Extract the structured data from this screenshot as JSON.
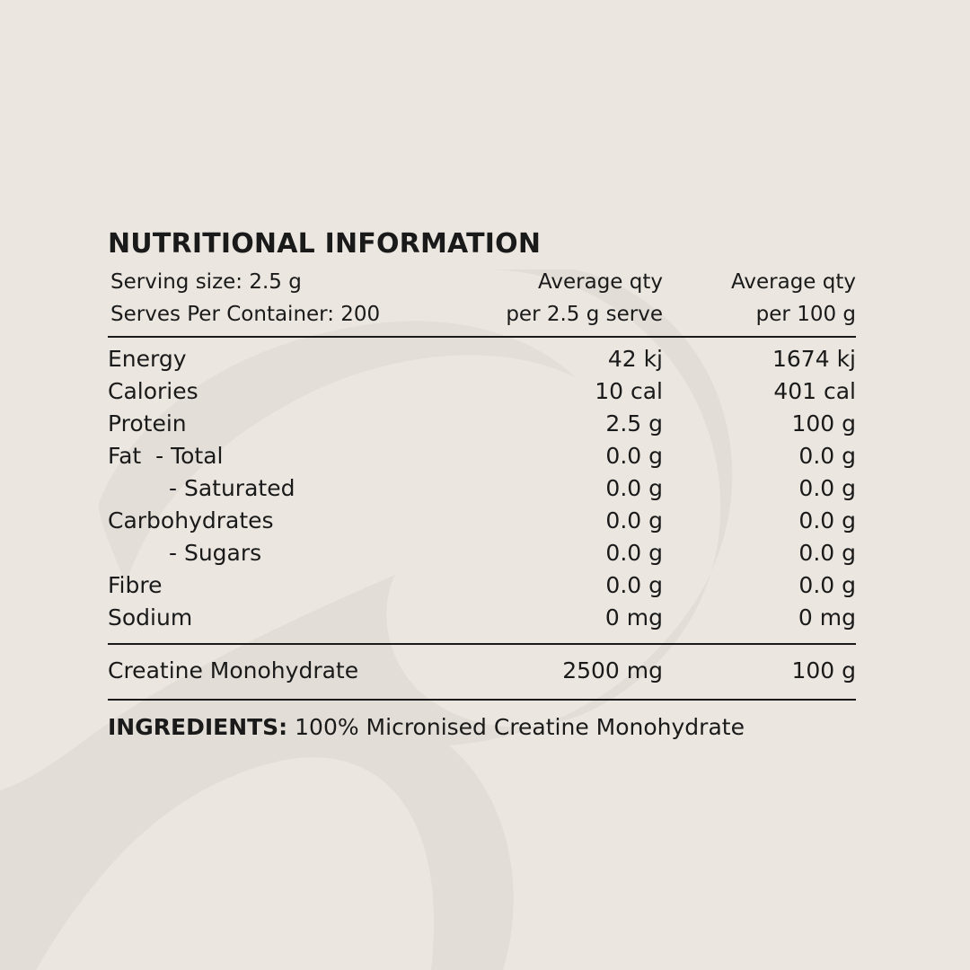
{
  "title": "NUTRITIONAL INFORMATION",
  "header": {
    "serving_size": "Serving size: 2.5 g",
    "serves_per_container": "Serves Per Container: 200",
    "col_serve_line1": "Average qty",
    "col_serve_line2": "per 2.5 g serve",
    "col_100g_line1": "Average qty",
    "col_100g_line2": "per 100 g"
  },
  "rows": [
    {
      "label": "Energy",
      "per_serve": "42 kj",
      "per_100g": "1674 kj"
    },
    {
      "label": "Calories",
      "per_serve": "10 cal",
      "per_100g": "401 cal"
    },
    {
      "label": "Protein",
      "per_serve": "2.5 g",
      "per_100g": "100 g"
    },
    {
      "label": "Fat  - Total",
      "per_serve": "0.0 g",
      "per_100g": "0.0 g"
    },
    {
      "label": "- Saturated",
      "per_serve": "0.0 g",
      "per_100g": "0.0 g"
    },
    {
      "label": "Carbohydrates",
      "per_serve": "0.0 g",
      "per_100g": "0.0 g"
    },
    {
      "label": "- Sugars",
      "per_serve": "0.0 g",
      "per_100g": "0.0 g"
    },
    {
      "label": "Fibre",
      "per_serve": "0.0 g",
      "per_100g": "0.0 g"
    },
    {
      "label": "Sodium",
      "per_serve": "0 mg",
      "per_100g": "0 mg"
    }
  ],
  "creatine": {
    "label": "Creatine Monohydrate",
    "per_serve": "2500 mg",
    "per_100g": "100 g"
  },
  "ingredients": {
    "label": "INGREDIENTS:",
    "text": "100% Micronised Creatine Monohydrate"
  },
  "colors": {
    "background": "#ebe7e0",
    "watermark": "#e2ddd6",
    "text": "#1a1a1a"
  }
}
